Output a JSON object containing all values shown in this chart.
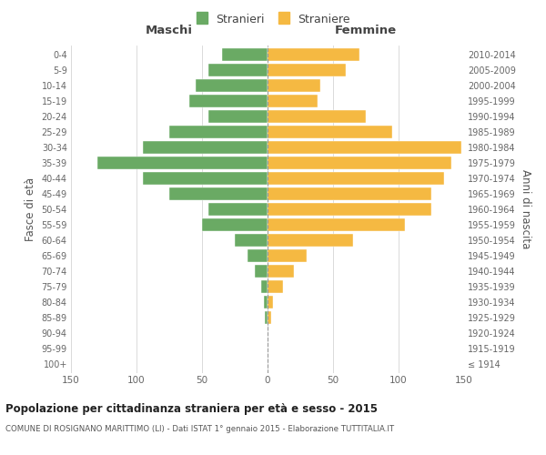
{
  "age_groups": [
    "100+",
    "95-99",
    "90-94",
    "85-89",
    "80-84",
    "75-79",
    "70-74",
    "65-69",
    "60-64",
    "55-59",
    "50-54",
    "45-49",
    "40-44",
    "35-39",
    "30-34",
    "25-29",
    "20-24",
    "15-19",
    "10-14",
    "5-9",
    "0-4"
  ],
  "birth_years": [
    "≤ 1914",
    "1915-1919",
    "1920-1924",
    "1925-1929",
    "1930-1934",
    "1935-1939",
    "1940-1944",
    "1945-1949",
    "1950-1954",
    "1955-1959",
    "1960-1964",
    "1965-1969",
    "1970-1974",
    "1975-1979",
    "1980-1984",
    "1985-1989",
    "1990-1994",
    "1995-1999",
    "2000-2004",
    "2005-2009",
    "2010-2014"
  ],
  "males": [
    0,
    0,
    0,
    2,
    3,
    5,
    10,
    15,
    25,
    50,
    45,
    75,
    95,
    130,
    95,
    75,
    45,
    60,
    55,
    45,
    35
  ],
  "females": [
    0,
    0,
    0,
    3,
    4,
    12,
    20,
    30,
    65,
    105,
    125,
    125,
    135,
    140,
    148,
    95,
    75,
    38,
    40,
    60,
    70
  ],
  "male_color": "#6aaa64",
  "female_color": "#f5b942",
  "background_color": "#ffffff",
  "grid_color": "#cccccc",
  "title": "Popolazione per cittadinanza straniera per età e sesso - 2015",
  "subtitle": "COMUNE DI ROSIGNANO MARITTIMO (LI) - Dati ISTAT 1° gennaio 2015 - Elaborazione TUTTITALIA.IT",
  "xlabel_left": "Maschi",
  "xlabel_right": "Femmine",
  "ylabel_left": "Fasce di età",
  "ylabel_right": "Anni di nascita",
  "legend_male": "Stranieri",
  "legend_female": "Straniere",
  "xlim": 150
}
